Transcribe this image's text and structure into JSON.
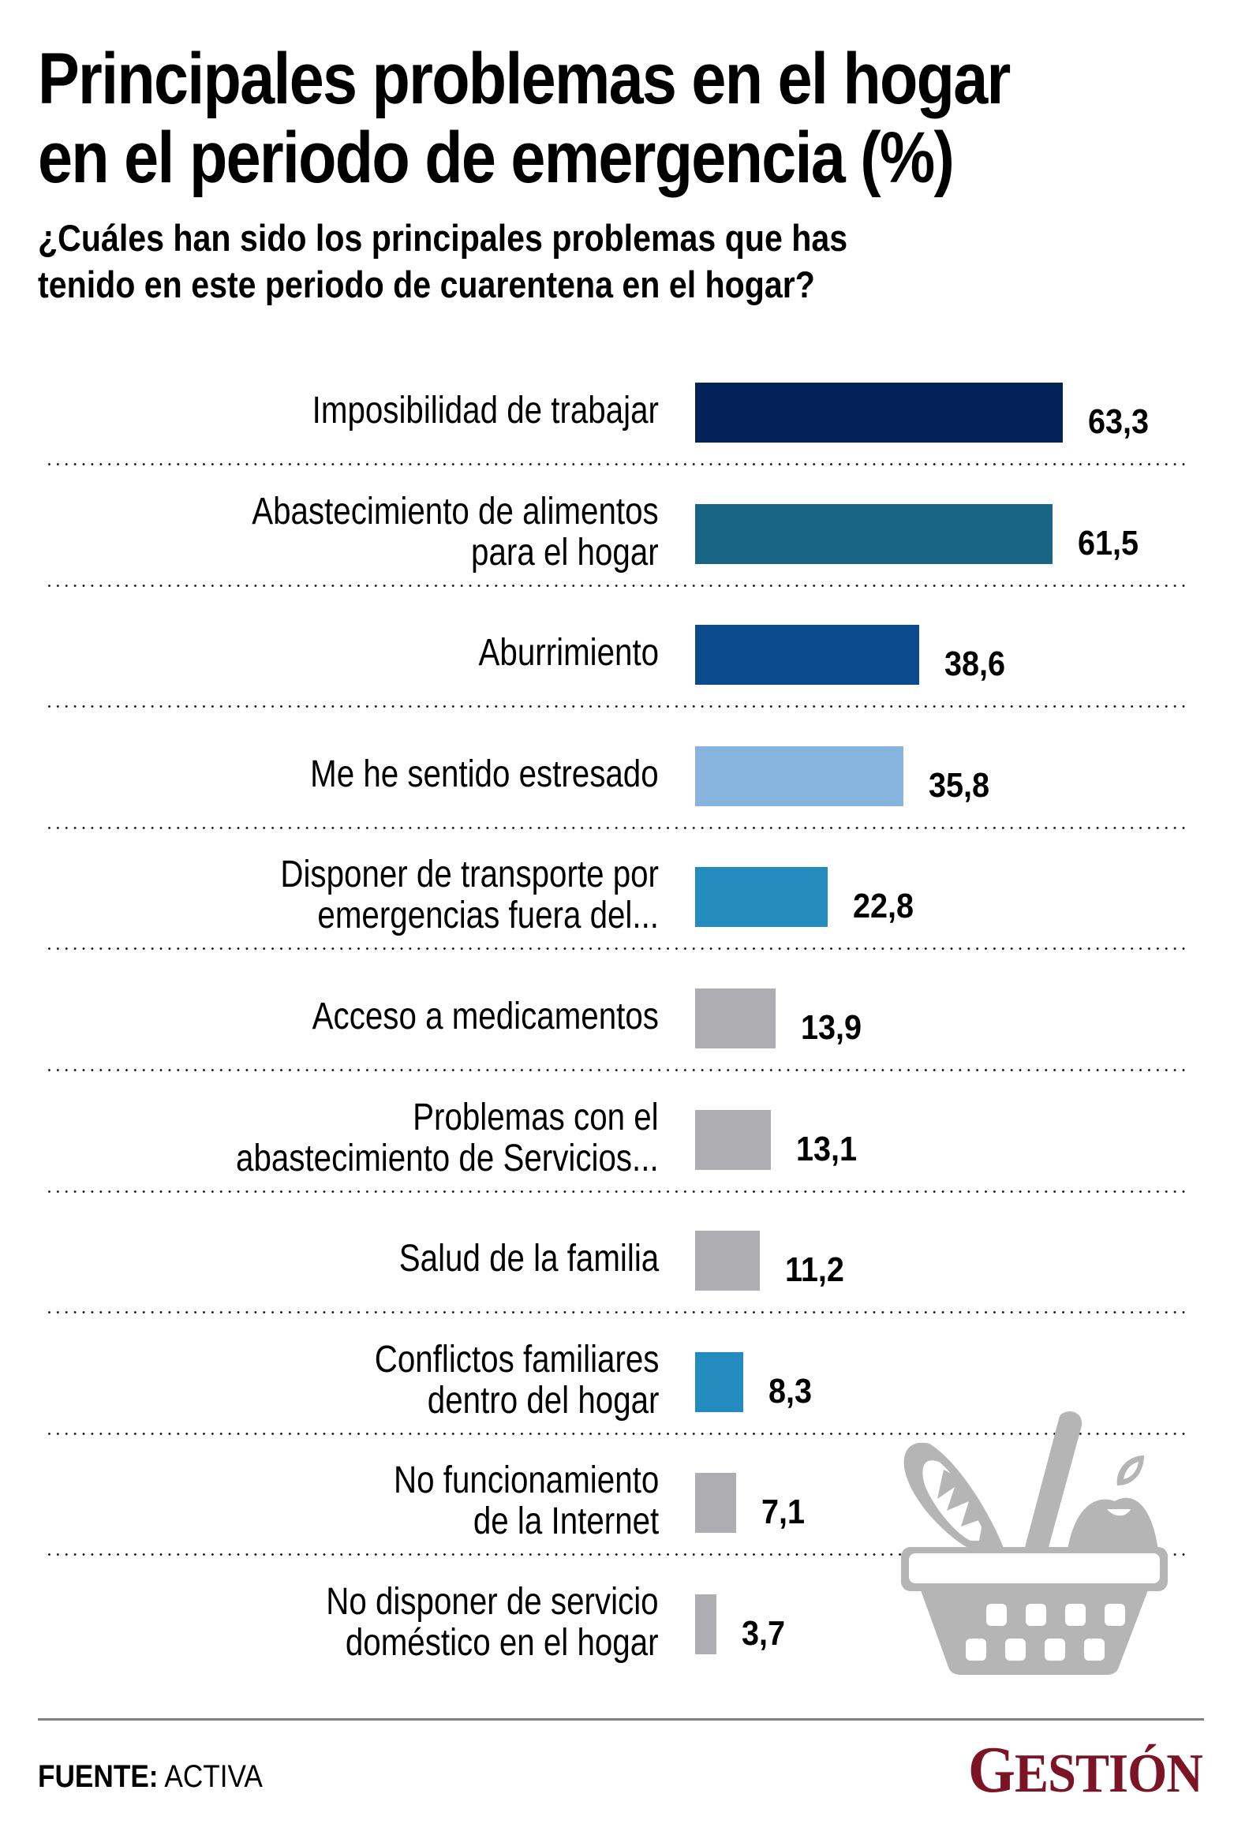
{
  "title": {
    "line1": "Principales problemas en el hogar",
    "line2": "en el periodo de emergencia (%)"
  },
  "subtitle": {
    "line1": "¿Cuáles han sido los principales problemas que has",
    "line2": "tenido en este periodo de cuarentena en el hogar?"
  },
  "chart_data": {
    "type": "bar",
    "orientation": "horizontal",
    "title": "Principales problemas en el hogar en el periodo de emergencia (%)",
    "subtitle": "¿Cuáles han sido los principales problemas que has tenido en este periodo de cuarentena en el hogar?",
    "xlabel": "",
    "ylabel": "",
    "unit": "%",
    "xlim": [
      0,
      63.3
    ],
    "grid": false,
    "legend": "none",
    "categories": [
      [
        "Imposibilidad de trabajar"
      ],
      [
        "Abastecimiento de alimentos",
        "para el hogar"
      ],
      [
        "Aburrimiento"
      ],
      [
        "Me he sentido estresado"
      ],
      [
        "Disponer de transporte por",
        "emergencias fuera del..."
      ],
      [
        "Acceso a medicamentos"
      ],
      [
        "Problemas con el",
        "abastecimiento de Servicios..."
      ],
      [
        "Salud de la familia"
      ],
      [
        "Conflictos familiares",
        "dentro del hogar"
      ],
      [
        "No funcionamiento",
        "de la Internet"
      ],
      [
        "No disponer de servicio",
        "doméstico en el hogar"
      ]
    ],
    "values": [
      63.3,
      61.5,
      38.6,
      35.8,
      22.8,
      13.9,
      13.1,
      11.2,
      8.3,
      7.1,
      3.7
    ],
    "value_labels": [
      "63,3",
      "61,5",
      "38,6",
      "35,8",
      "22,8",
      "13,9",
      "13,1",
      "11,2",
      "8,3",
      "7,1",
      "3,7"
    ],
    "colors": [
      "#022259",
      "#186585",
      "#0b4a8d",
      "#86b4df",
      "#238bbd",
      "#aeadb2",
      "#aeadb2",
      "#aeadb2",
      "#238bbd",
      "#aeadb2",
      "#aeadb2"
    ]
  },
  "illustration": {
    "icon": "shopping-basket-icon",
    "color": "#b5b5b5"
  },
  "footer": {
    "source_label": "FUENTE:",
    "source_value": " ACTIVA",
    "logo_first": "G",
    "logo_rest": "ESTIÓN",
    "logo_color": "#7c1426",
    "rule_color": "#808080"
  }
}
